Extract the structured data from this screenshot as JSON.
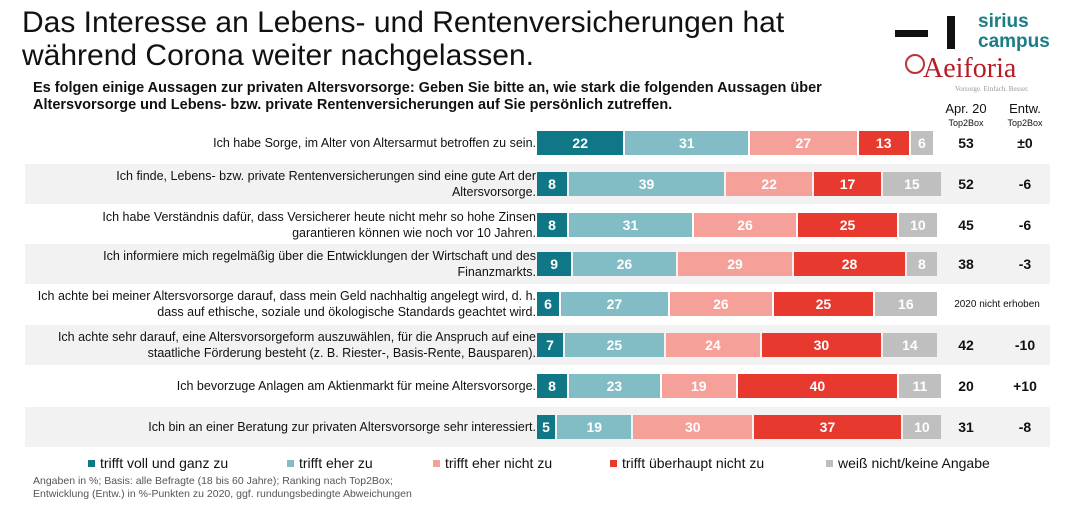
{
  "title": "Das Interesse an Lebens- und Rentenversicherungen hat während Corona weiter nachgelassen.",
  "subtitle": "Es folgen einige Aussagen zur privaten Altersvorsorge: Geben Sie bitte an, wie stark die folgenden Aussagen über Altersvorsorge und Lebens- bzw. private Rentenversicherungen auf Sie persönlich zutreffen.",
  "logos": {
    "sirius": "sirius campus",
    "aeiforia": "Aeiforia",
    "aeiforia_tagline": "Vorsorge. Einfach. Besser."
  },
  "columns": {
    "top2box": "Apr. 20",
    "top2box_sub": "Top2Box",
    "entw": "Entw.",
    "entw_sub": "Top2Box"
  },
  "chart_data": {
    "type": "bar",
    "orientation": "horizontal",
    "stacked": true,
    "xlim": [
      0,
      100
    ],
    "categories": [
      "Ich habe Sorge, im Alter von Altersarmut betroffen zu sein.",
      "Ich finde, Lebens- bzw. private Rentenversicherungen sind eine gute Art der Altersvorsorge.",
      "Ich habe Verständnis dafür, dass Versicherer heute nicht mehr so hohe Zinsen garantieren können wie noch vor 10 Jahren.",
      "Ich informiere mich regelmäßig über die Entwicklungen der Wirtschaft und des Finanzmarkts.",
      "Ich achte bei meiner Altersvorsorge darauf, dass mein Geld nachhaltig angelegt wird, d. h. dass auf ethische, soziale und ökologische Standards geachtet wird.",
      "Ich achte sehr darauf, eine Altersvorsorgeform auszuwählen, für die Anspruch auf eine staatliche Förderung besteht (z. B. Riester-, Basis-Rente, Bausparen).",
      "Ich bevorzuge Anlagen am Aktienmarkt für meine Altersvorsorge.",
      "Ich bin an einer Beratung zur privaten Altersvorsorge sehr interessiert."
    ],
    "series": [
      {
        "name": "trifft voll und ganz zu",
        "color": "#0f7785",
        "values": [
          22,
          8,
          8,
          9,
          6,
          7,
          8,
          5
        ]
      },
      {
        "name": "trifft eher zu",
        "color": "#82bcc4",
        "values": [
          31,
          39,
          31,
          26,
          27,
          25,
          23,
          19
        ]
      },
      {
        "name": "trifft eher nicht zu",
        "color": "#f5a19a",
        "values": [
          27,
          22,
          26,
          29,
          26,
          24,
          19,
          30
        ]
      },
      {
        "name": "trifft überhaupt nicht zu",
        "color": "#e8392e",
        "values": [
          13,
          17,
          25,
          28,
          25,
          30,
          40,
          37
        ]
      },
      {
        "name": "weiß nicht/keine Angabe",
        "color": "#bfbfbf",
        "values": [
          6,
          15,
          10,
          8,
          16,
          14,
          11,
          10
        ]
      }
    ],
    "top2box_apr20": [
      "53",
      "52",
      "45",
      "38",
      "2020 nicht erhoben",
      "42",
      "20",
      "31"
    ],
    "entw": [
      "±0",
      "-6",
      "-6",
      "-3",
      "",
      "-10",
      "+10",
      "-8"
    ]
  },
  "footnote": [
    "Angaben in %; Basis: alle Befragte (18 bis 60 Jahre); Ranking nach Top2Box;",
    "Entwicklung (Entw.) in %-Punkten zu 2020, ggf. rundungsbedingte Abweichungen"
  ]
}
